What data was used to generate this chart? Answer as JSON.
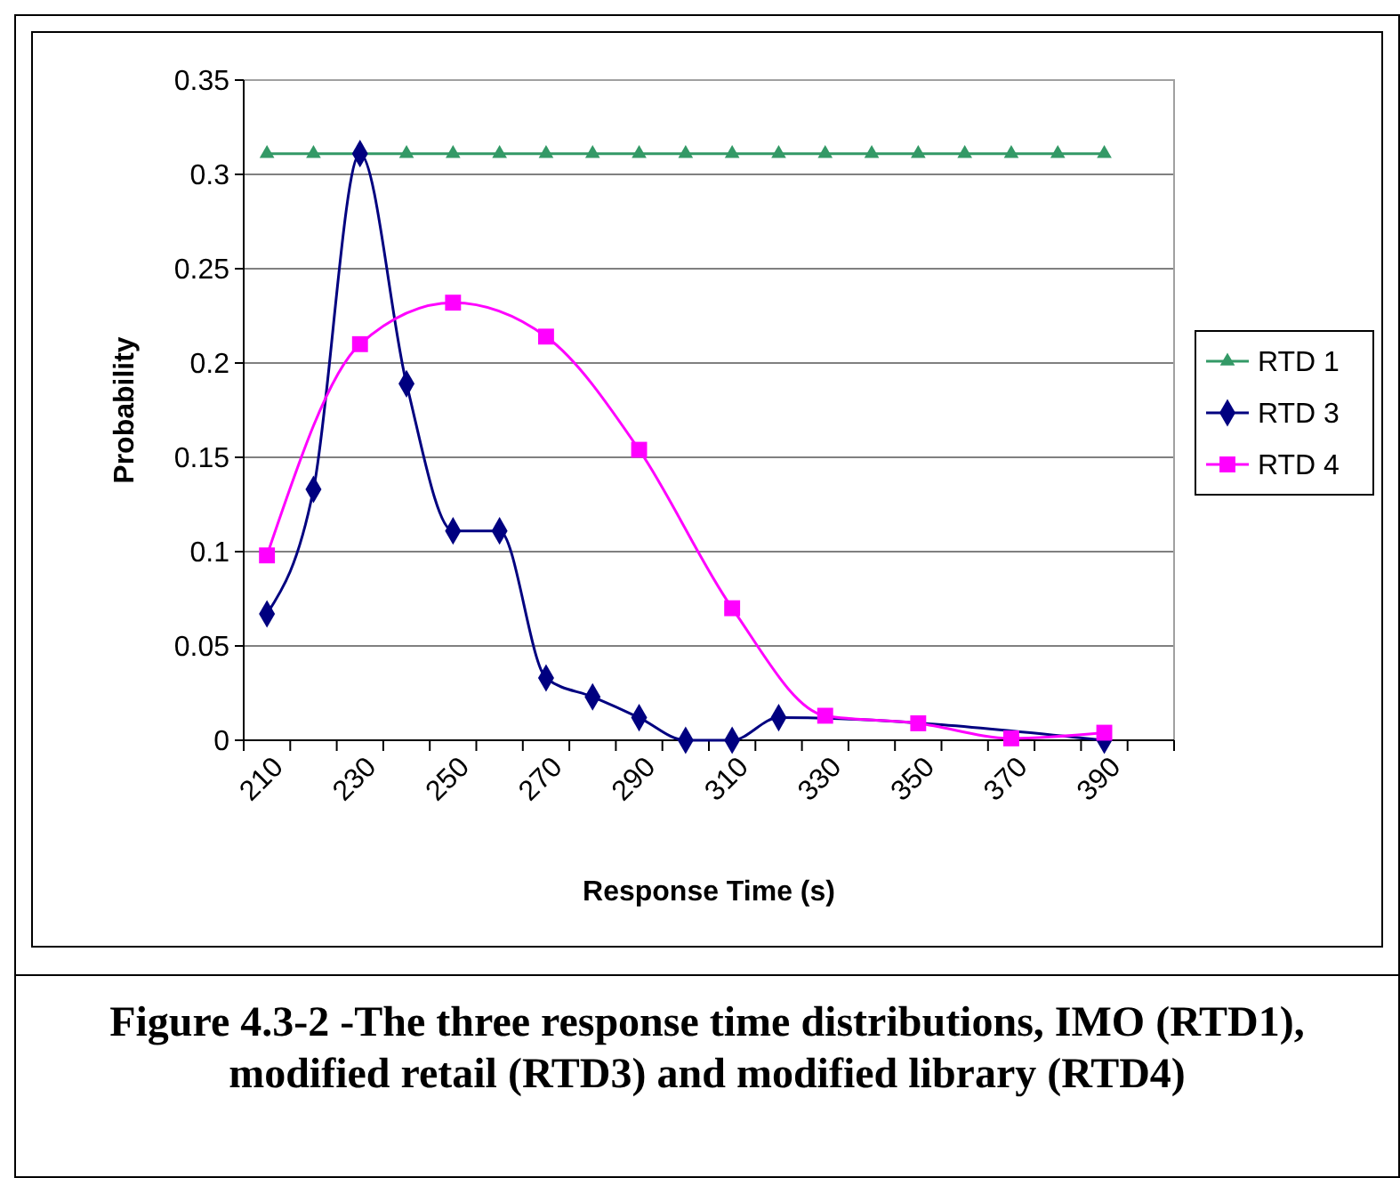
{
  "chart_data": {
    "type": "line",
    "xlabel": "Response Time (s)",
    "ylabel": "Probability",
    "categories": [
      "210",
      null,
      "230",
      null,
      "250",
      null,
      "270",
      null,
      "290",
      null,
      "310",
      null,
      "330",
      null,
      "350",
      null,
      "370",
      null,
      "390",
      null
    ],
    "ylim": [
      0,
      0.35
    ],
    "yticks": [
      0,
      0.05,
      0.1,
      0.15,
      0.2,
      0.25,
      0.3,
      0.35
    ],
    "grid": "y",
    "legend": "right",
    "series": [
      {
        "name": "RTD 1",
        "color": "#339966",
        "marker": "triangle",
        "values": [
          0.311,
          0.311,
          null,
          0.311,
          0.311,
          0.311,
          0.311,
          0.311,
          0.311,
          0.311,
          0.311,
          0.311,
          0.311,
          0.311,
          0.311,
          0.311,
          0.311,
          0.311,
          0.311,
          null
        ]
      },
      {
        "name": "RTD 3",
        "color": "#000080",
        "marker": "diamond",
        "values": [
          0.067,
          0.133,
          0.311,
          0.189,
          0.111,
          0.111,
          0.033,
          0.023,
          0.012,
          0,
          0,
          0.012,
          null,
          null,
          null,
          null,
          null,
          null,
          0,
          null
        ]
      },
      {
        "name": "RTD 4",
        "color": "#ff00ff",
        "marker": "square",
        "values": [
          0.098,
          null,
          0.21,
          null,
          0.232,
          null,
          0.214,
          null,
          0.154,
          null,
          0.07,
          null,
          0.013,
          null,
          0.009,
          null,
          0.001,
          null,
          0.004,
          null
        ]
      }
    ],
    "annotations": [
      "Figure 4.3-2 -The three response time distributions, IMO (RTD1), modified retail (RTD3) and modified library (RTD4)"
    ]
  }
}
